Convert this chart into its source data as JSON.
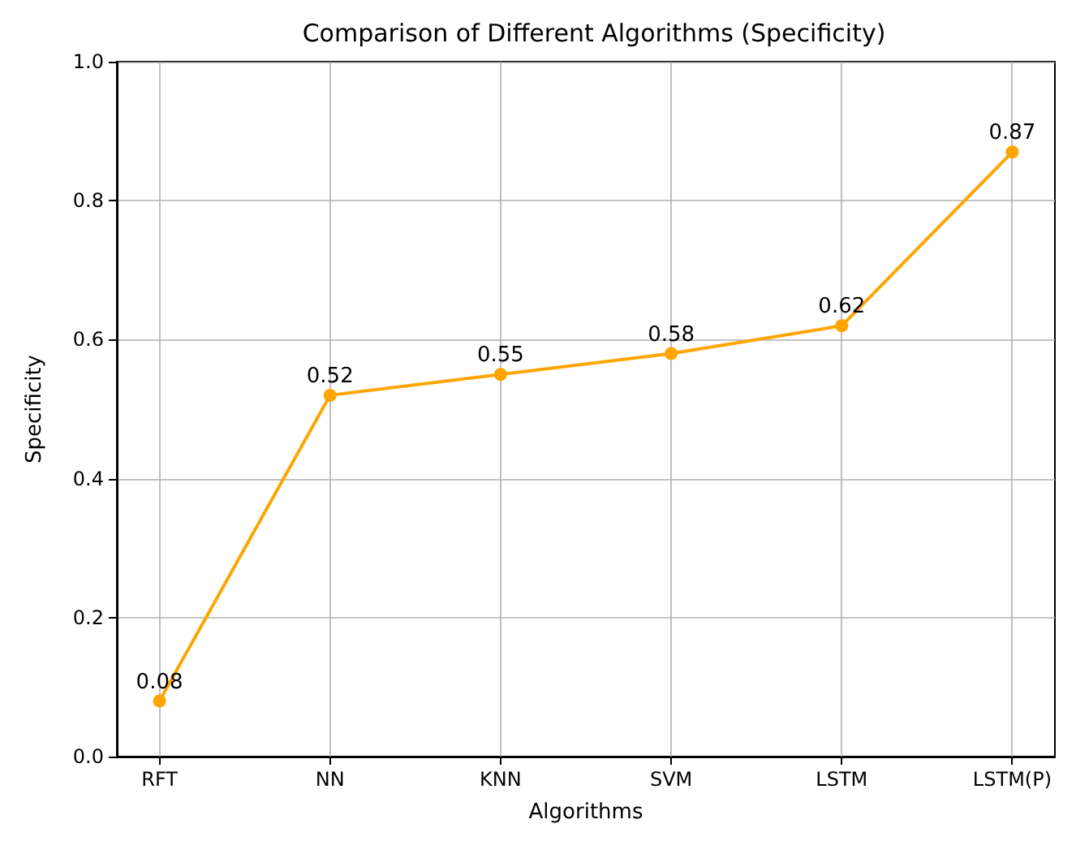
{
  "chart_data": {
    "type": "line",
    "title": "Comparison of Different Algorithms (Specificity)",
    "xlabel": "Algorithms",
    "ylabel": "Specificity",
    "categories": [
      "RFT",
      "NN",
      "KNN",
      "SVM",
      "LSTM",
      "LSTM(P)"
    ],
    "series": [
      {
        "color": "#ffa500",
        "values": [
          0.08,
          0.52,
          0.55,
          0.58,
          0.62,
          0.87
        ]
      }
    ],
    "ylim": [
      0,
      1
    ],
    "yticks": [
      {
        "value": 0,
        "label": "0.0"
      },
      {
        "value": 0.2,
        "label": "0.2"
      },
      {
        "value": 0.4,
        "label": "0.4"
      },
      {
        "value": 0.6,
        "label": "0.6"
      },
      {
        "value": 0.8,
        "label": "0.8"
      },
      {
        "value": 1,
        "label": "1.0"
      }
    ],
    "grid": true,
    "marker": "circle",
    "line_style": "solid",
    "data_labels": true
  }
}
